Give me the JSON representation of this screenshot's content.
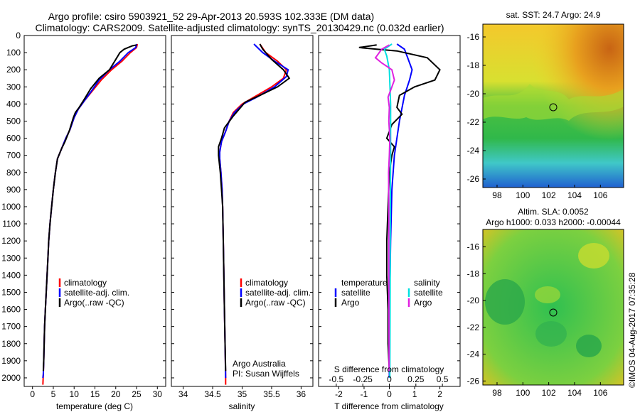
{
  "title": {
    "line1": "Argo profile: csiro 5903921_52 29-Apr-2013 20.593S 102.333E (DM data)",
    "line2": "Climatology: CARS2009. Satellite-adjusted climatology: synTS_20130429.nc (0.032d earlier)"
  },
  "depth_ticks": [
    "0",
    "100",
    "200",
    "300",
    "400",
    "500",
    "600",
    "700",
    "800",
    "900",
    "1000",
    "1100",
    "1200",
    "1300",
    "1400",
    "1500",
    "1600",
    "1700",
    "1800",
    "1900",
    "2000"
  ],
  "colors": {
    "climatology": "#ff0000",
    "satellite": "#0000ff",
    "argo": "#000000",
    "argo_s": "#e020e0",
    "sat_s": "#00e0e0"
  },
  "timestamp": "©IMOS 04-Aug-2017 07:35:28",
  "annotation": {
    "line1": "Argo Australia",
    "line2": "PI: Susan Wijffels"
  },
  "legend_profile": [
    "climatology",
    "satellite-adj. clim.",
    "Argo(..raw -QC)"
  ],
  "legend_diff": {
    "temp_head": "temperature",
    "sal_head": "salinity",
    "temp_items": [
      "satellite",
      "Argo"
    ],
    "sal_items": [
      "satellite",
      "Argo"
    ]
  },
  "maps": [
    {
      "title": "sat. SST: 24.7  Argo: 24.9",
      "yticks": [
        "-16",
        "-18",
        "-20",
        "-22",
        "-24",
        "-26"
      ],
      "xticks": [
        "98",
        "100",
        "102",
        "104",
        "106"
      ]
    },
    {
      "title_line1": "Altim. SLA: 0.0052",
      "title_line2": "Argo h1000: 0.033 h2000: -0.00044",
      "yticks": [
        "-16",
        "-18",
        "-20",
        "-22",
        "-24",
        "-26"
      ],
      "xticks": [
        "98",
        "100",
        "102",
        "104",
        "106"
      ]
    }
  ],
  "chart_data": [
    {
      "type": "line",
      "xlabel": "temperature (deg C)",
      "ylim": [
        2050,
        0
      ],
      "xlim": [
        -2,
        32
      ],
      "xticks": [
        "0",
        "5",
        "10",
        "15",
        "20",
        "25",
        "30"
      ],
      "series": [
        {
          "name": "climatology",
          "points": [
            [
              25.2,
              50
            ],
            [
              25,
              70
            ],
            [
              23.5,
              100
            ],
            [
              21.5,
              150
            ],
            [
              19,
              200
            ],
            [
              16.5,
              260
            ],
            [
              14.5,
              320
            ],
            [
              12.5,
              380
            ],
            [
              11,
              430
            ],
            [
              10,
              480
            ],
            [
              9,
              550
            ],
            [
              8,
              600
            ],
            [
              7,
              660
            ],
            [
              6,
              720
            ],
            [
              5.5,
              800
            ],
            [
              5,
              900
            ],
            [
              4.6,
              1000
            ],
            [
              4.2,
              1100
            ],
            [
              3.9,
              1200
            ],
            [
              3.7,
              1300
            ],
            [
              3.5,
              1400
            ],
            [
              3.3,
              1500
            ],
            [
              3.1,
              1600
            ],
            [
              2.9,
              1700
            ],
            [
              2.8,
              1800
            ],
            [
              2.7,
              1900
            ],
            [
              2.6,
              1980
            ],
            [
              2.5,
              2040
            ]
          ]
        },
        {
          "name": "satellite-adj. clim.",
          "points": [
            [
              25,
              50
            ],
            [
              24.8,
              70
            ],
            [
              23,
              100
            ],
            [
              21,
              150
            ],
            [
              18.5,
              200
            ],
            [
              16,
              260
            ],
            [
              14.3,
              320
            ],
            [
              12.5,
              380
            ],
            [
              11,
              430
            ],
            [
              10,
              480
            ],
            [
              9,
              550
            ],
            [
              8,
              600
            ],
            [
              7,
              660
            ],
            [
              6,
              720
            ],
            [
              5.5,
              800
            ],
            [
              5,
              900
            ],
            [
              4.6,
              1000
            ],
            [
              4.2,
              1100
            ],
            [
              3.9,
              1200
            ],
            [
              3.7,
              1300
            ],
            [
              3.5,
              1400
            ],
            [
              3.3,
              1500
            ],
            [
              3.1,
              1600
            ],
            [
              2.9,
              1700
            ],
            [
              2.8,
              1800
            ],
            [
              2.7,
              1900
            ],
            [
              2.6,
              1980
            ],
            [
              2.5,
              2000
            ]
          ]
        },
        {
          "name": "Argo(..raw -QC)",
          "points": [
            [
              25,
              55
            ],
            [
              24,
              60
            ],
            [
              22,
              80
            ],
            [
              21,
              100
            ],
            [
              20,
              140
            ],
            [
              18.5,
              200
            ],
            [
              16,
              250
            ],
            [
              14,
              310
            ],
            [
              12.5,
              370
            ],
            [
              11.2,
              420
            ],
            [
              10.3,
              450
            ],
            [
              9.8,
              480
            ],
            [
              8.8,
              560
            ],
            [
              7.8,
              620
            ],
            [
              7,
              660
            ],
            [
              6,
              720
            ],
            [
              5.5,
              800
            ],
            [
              5,
              900
            ],
            [
              4.6,
              1000
            ],
            [
              4.2,
              1100
            ],
            [
              3.9,
              1200
            ],
            [
              3.7,
              1300
            ],
            [
              3.5,
              1400
            ],
            [
              3.3,
              1500
            ],
            [
              3.1,
              1600
            ],
            [
              2.9,
              1700
            ],
            [
              2.8,
              1800
            ],
            [
              2.7,
              1900
            ],
            [
              2.6,
              1960
            ]
          ]
        }
      ]
    },
    {
      "type": "line",
      "xlabel": "salinity",
      "ylim": [
        2050,
        0
      ],
      "xlim": [
        33.8,
        36.2
      ],
      "xticks": [
        "34",
        "34.5",
        "35",
        "35.5",
        "36"
      ],
      "series": [
        {
          "name": "climatology",
          "points": [
            [
              35.3,
              50
            ],
            [
              35.4,
              100
            ],
            [
              35.6,
              150
            ],
            [
              35.75,
              200
            ],
            [
              35.7,
              250
            ],
            [
              35.5,
              300
            ],
            [
              35.2,
              360
            ],
            [
              35,
              400
            ],
            [
              34.85,
              450
            ],
            [
              34.78,
              500
            ],
            [
              34.72,
              560
            ],
            [
              34.65,
              620
            ],
            [
              34.62,
              680
            ],
            [
              34.62,
              720
            ],
            [
              34.64,
              800
            ],
            [
              34.66,
              900
            ],
            [
              34.67,
              1000
            ],
            [
              34.68,
              1200
            ],
            [
              34.69,
              1400
            ],
            [
              34.7,
              1600
            ],
            [
              34.71,
              1800
            ],
            [
              34.72,
              2000
            ],
            [
              34.72,
              2040
            ]
          ]
        },
        {
          "name": "satellite-adj. clim.",
          "points": [
            [
              35.2,
              50
            ],
            [
              35.35,
              100
            ],
            [
              35.55,
              150
            ],
            [
              35.78,
              200
            ],
            [
              35.75,
              240
            ],
            [
              35.55,
              300
            ],
            [
              35.25,
              360
            ],
            [
              35.02,
              400
            ],
            [
              34.87,
              450
            ],
            [
              34.78,
              500
            ],
            [
              34.72,
              560
            ],
            [
              34.65,
              620
            ],
            [
              34.62,
              680
            ],
            [
              34.62,
              720
            ],
            [
              34.64,
              800
            ],
            [
              34.66,
              900
            ],
            [
              34.67,
              1000
            ],
            [
              34.68,
              1200
            ],
            [
              34.69,
              1400
            ],
            [
              34.7,
              1600
            ],
            [
              34.71,
              1800
            ],
            [
              34.72,
              2000
            ]
          ]
        },
        {
          "name": "Argo(..raw -QC)",
          "points": [
            [
              35.3,
              50
            ],
            [
              35.35,
              80
            ],
            [
              35.5,
              140
            ],
            [
              35.7,
              200
            ],
            [
              35.8,
              250
            ],
            [
              35.6,
              300
            ],
            [
              35.3,
              350
            ],
            [
              35.05,
              390
            ],
            [
              34.95,
              430
            ],
            [
              34.85,
              470
            ],
            [
              34.7,
              540
            ],
            [
              34.65,
              600
            ],
            [
              34.6,
              650
            ],
            [
              34.6,
              700
            ],
            [
              34.63,
              800
            ],
            [
              34.65,
              900
            ],
            [
              34.67,
              1000
            ],
            [
              34.68,
              1200
            ],
            [
              34.69,
              1400
            ],
            [
              34.7,
              1600
            ],
            [
              34.71,
              1800
            ],
            [
              34.72,
              1960
            ]
          ]
        }
      ]
    },
    {
      "type": "line",
      "xlabel": "T difference from climatology",
      "xlabel_top": "S difference from climatology",
      "ylim": [
        2050,
        0
      ],
      "xlim": [
        -2.8,
        2.8
      ],
      "xticks_T": [
        "-2",
        "-1",
        "0",
        "1",
        "2"
      ],
      "xticks_S": [
        "-0.5",
        "-0.25",
        "0",
        "0.25",
        "0.5"
      ],
      "series": [
        {
          "name": "temperature satellite",
          "points": [
            [
              0.3,
              50
            ],
            [
              0.6,
              80
            ],
            [
              0.7,
              120
            ],
            [
              0.9,
              200
            ],
            [
              0.8,
              260
            ],
            [
              0.6,
              350
            ],
            [
              0.4,
              500
            ],
            [
              0.2,
              700
            ],
            [
              0.1,
              900
            ],
            [
              0.05,
              1200
            ],
            [
              0.02,
              1500
            ],
            [
              0.0,
              2000
            ]
          ]
        },
        {
          "name": "temperature Argo",
          "points": [
            [
              -0.5,
              55
            ],
            [
              -1.2,
              70
            ],
            [
              -0.5,
              80
            ],
            [
              0.3,
              90
            ],
            [
              1.5,
              130
            ],
            [
              2.0,
              200
            ],
            [
              1.8,
              260
            ],
            [
              1.0,
              300
            ],
            [
              0.4,
              350
            ],
            [
              0.3,
              420
            ],
            [
              0.5,
              460
            ],
            [
              0.1,
              520
            ],
            [
              -0.1,
              600
            ],
            [
              0.2,
              650
            ],
            [
              0.1,
              700
            ],
            [
              0.0,
              800
            ],
            [
              -0.05,
              1000
            ],
            [
              -0.1,
              1200
            ],
            [
              -0.1,
              1400
            ],
            [
              -0.05,
              1600
            ],
            [
              -0.05,
              1800
            ],
            [
              0.0,
              1960
            ]
          ]
        },
        {
          "name": "salinity satellite",
          "points": [
            [
              0.1,
              50
            ],
            [
              -0.2,
              80
            ],
            [
              -0.1,
              120
            ],
            [
              0.0,
              200
            ],
            [
              0.05,
              400
            ],
            [
              0.05,
              700
            ],
            [
              0.04,
              1000
            ],
            [
              0.03,
              1500
            ],
            [
              0.02,
              2000
            ]
          ]
        },
        {
          "name": "salinity Argo",
          "points": [
            [
              0.0,
              55
            ],
            [
              -0.3,
              80
            ],
            [
              -0.55,
              130
            ],
            [
              -0.3,
              160
            ],
            [
              0.1,
              200
            ],
            [
              0.2,
              260
            ],
            [
              0.1,
              300
            ],
            [
              -0.05,
              360
            ],
            [
              0.0,
              420
            ],
            [
              -0.02,
              500
            ],
            [
              0.02,
              600
            ],
            [
              0.0,
              700
            ],
            [
              -0.03,
              800
            ],
            [
              -0.02,
              1000
            ],
            [
              -0.02,
              1400
            ],
            [
              -0.01,
              1800
            ],
            [
              -0.01,
              1960
            ]
          ]
        }
      ]
    }
  ]
}
